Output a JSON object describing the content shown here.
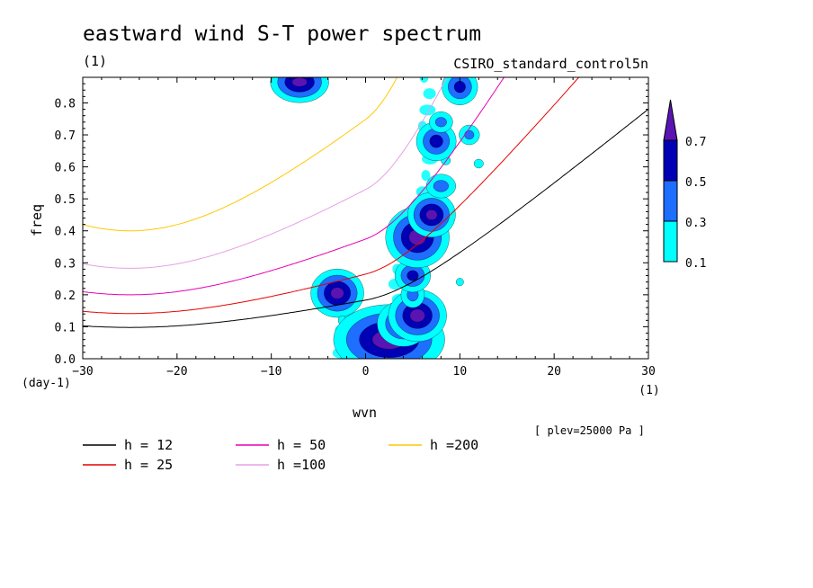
{
  "chart_data": {
    "type": "contour",
    "title": "eastward wind S-T power spectrum",
    "subtitle_left": "(1)",
    "subtitle_right": "CSIRO_standard_control5n",
    "xlabel": "wvn",
    "ylabel": "freq",
    "x_unit": "(1)",
    "y_unit": "(day-1)",
    "xlim": [
      -30,
      30
    ],
    "ylim": [
      0,
      0.88
    ],
    "x_ticks": [
      -30,
      -20,
      -10,
      0,
      10,
      20,
      30
    ],
    "y_ticks": [
      0.0,
      0.1,
      0.2,
      0.3,
      0.4,
      0.5,
      0.6,
      0.7,
      0.8
    ],
    "x_tick_labels": [
      "−30",
      "−20",
      "−10",
      "0",
      "10",
      "20",
      "30"
    ],
    "y_tick_labels": [
      "0.0",
      "0.1",
      "0.2",
      "0.3",
      "0.4",
      "0.5",
      "0.6",
      "0.7",
      "0.8"
    ],
    "note": "[ plev=25000 Pa ]",
    "colorbar": {
      "levels": [
        "0.1",
        "0.3",
        "0.5",
        "0.7"
      ],
      "colors": [
        "#00ffff",
        "#1e6eff",
        "#0000b4",
        "#5a14b4"
      ]
    },
    "series": [
      {
        "name": "h = 12",
        "h": 12,
        "color": "#000000"
      },
      {
        "name": "h = 25",
        "h": 25,
        "color": "#e60000"
      },
      {
        "name": "h = 50",
        "h": 50,
        "color": "#e600b4"
      },
      {
        "name": "h =100",
        "h": 100,
        "color": "#e6a0e6"
      },
      {
        "name": "h =200",
        "h": 200,
        "color": "#ffc800"
      }
    ],
    "contour_blobs": [
      {
        "x": -7.0,
        "y": 0.865,
        "rx": 0.8,
        "ry": 0.014,
        "level": 3
      },
      {
        "x": -3.0,
        "y": 0.205,
        "rx": 0.7,
        "ry": 0.018,
        "level": 3
      },
      {
        "x": -2.5,
        "y": 0.12,
        "rx": 0.4,
        "ry": 0.015,
        "level": 0
      },
      {
        "x": -0.5,
        "y": 0.04,
        "rx": 0.6,
        "ry": 0.02,
        "level": 2
      },
      {
        "x": 1.0,
        "y": 0.02,
        "rx": 1.2,
        "ry": 0.02,
        "level": 1
      },
      {
        "x": 2.5,
        "y": 0.06,
        "rx": 1.8,
        "ry": 0.03,
        "level": 3
      },
      {
        "x": 4.0,
        "y": 0.11,
        "rx": 1.0,
        "ry": 0.025,
        "level": 2
      },
      {
        "x": 5.5,
        "y": 0.135,
        "rx": 0.8,
        "ry": 0.02,
        "level": 3
      },
      {
        "x": 5.0,
        "y": 0.2,
        "rx": 0.6,
        "ry": 0.02,
        "level": 1
      },
      {
        "x": 5.0,
        "y": 0.26,
        "rx": 0.6,
        "ry": 0.016,
        "level": 2
      },
      {
        "x": 5.5,
        "y": 0.38,
        "rx": 0.9,
        "ry": 0.025,
        "level": 3
      },
      {
        "x": 7.0,
        "y": 0.45,
        "rx": 0.6,
        "ry": 0.016,
        "level": 3
      },
      {
        "x": 8.0,
        "y": 0.54,
        "rx": 0.8,
        "ry": 0.018,
        "level": 1
      },
      {
        "x": 8.5,
        "y": 0.62,
        "rx": 0.5,
        "ry": 0.014,
        "level": 0
      },
      {
        "x": 7.5,
        "y": 0.68,
        "rx": 0.7,
        "ry": 0.02,
        "level": 2
      },
      {
        "x": 8.0,
        "y": 0.74,
        "rx": 0.6,
        "ry": 0.015,
        "level": 1
      },
      {
        "x": 10.0,
        "y": 0.85,
        "rx": 0.6,
        "ry": 0.018,
        "level": 2
      },
      {
        "x": 11.0,
        "y": 0.7,
        "rx": 0.5,
        "ry": 0.014,
        "level": 1
      },
      {
        "x": 10.0,
        "y": 0.24,
        "rx": 0.4,
        "ry": 0.012,
        "level": 0
      },
      {
        "x": 12.0,
        "y": 0.61,
        "rx": 0.5,
        "ry": 0.014,
        "level": 0
      }
    ],
    "contour_bands": [
      {
        "x0": -4.0,
        "x1": 1.0,
        "y0": 0.0,
        "y1": 0.16,
        "level": 0
      },
      {
        "x0": 1.0,
        "x1": 8.0,
        "y0": 0.0,
        "y1": 0.42,
        "level": 0
      },
      {
        "x0": 4.5,
        "x1": 10.0,
        "y0": 0.42,
        "y1": 0.88,
        "level": 0
      }
    ]
  }
}
